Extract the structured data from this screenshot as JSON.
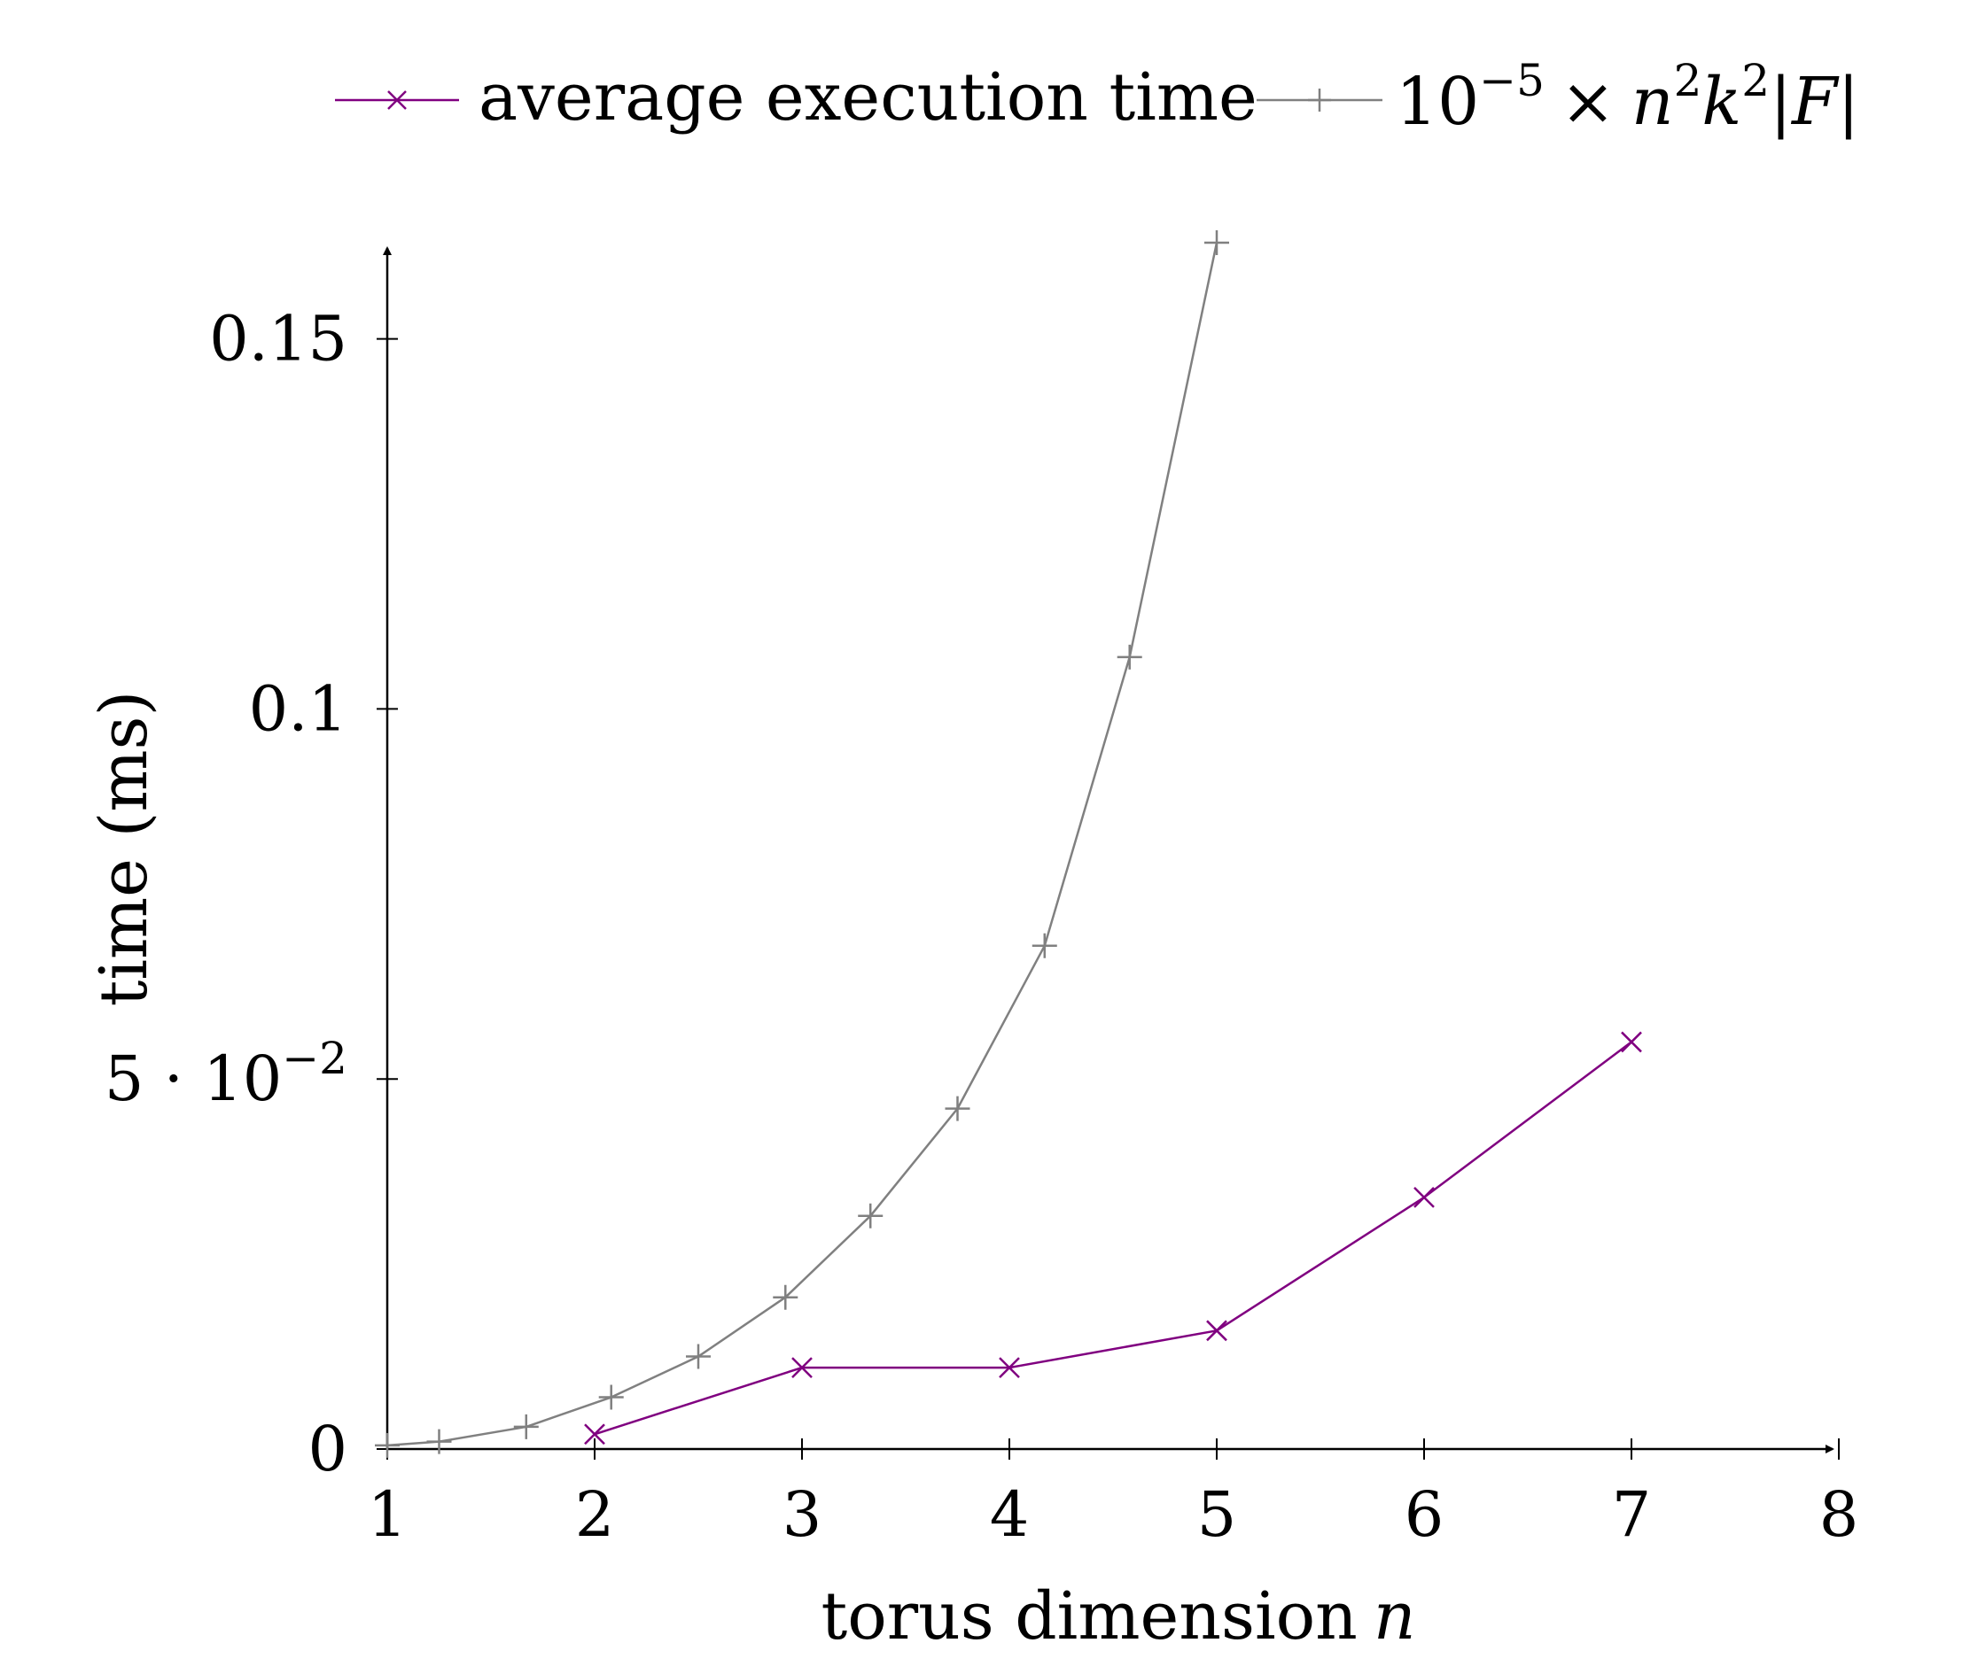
{
  "chart_data": {
    "type": "line",
    "xlabel": "torus dimension",
    "xlabel_var": "n",
    "ylabel": "time (ms)",
    "xlim": [
      1,
      8
    ],
    "ylim": [
      0,
      0.163
    ],
    "x_ticks": [
      1,
      2,
      3,
      4,
      5,
      6,
      7,
      8
    ],
    "x_tick_labels": [
      "1",
      "2",
      "3",
      "4",
      "5",
      "6",
      "7",
      "8"
    ],
    "y_ticks": [
      0,
      0.05,
      0.1,
      0.15
    ],
    "y_tick_labels": {
      "t0": "0",
      "t1_mantissa": "5 · 10",
      "t1_exponent": "−2",
      "t2": "0.1",
      "t3": "0.15"
    },
    "legend_position": "top",
    "series": [
      {
        "name": "average execution time",
        "color": "#800080",
        "marker": "x",
        "x": [
          2,
          3,
          4,
          5,
          6,
          7
        ],
        "y": [
          0.002,
          0.011,
          0.011,
          0.016,
          0.034,
          0.055
        ]
      },
      {
        "name": "10^-5 × n^2 k^2 |F|",
        "color": "#808080",
        "marker": "+",
        "x": [
          1.0,
          1.25,
          1.67,
          2.08,
          2.5,
          2.92,
          3.33,
          3.75,
          4.17,
          4.58,
          5.0
        ],
        "y": [
          0.0005,
          0.001,
          0.003,
          0.007,
          0.0125,
          0.0205,
          0.0315,
          0.046,
          0.068,
          0.107,
          0.163
        ]
      }
    ],
    "legend": {
      "series1_label": "average execution time",
      "series2_base": "10",
      "series2_exp": "−5",
      "series2_times": "×",
      "series2_n": "n",
      "series2_n_exp": "2",
      "series2_k": "k",
      "series2_k_exp": "2",
      "series2_F": "|F|"
    }
  }
}
